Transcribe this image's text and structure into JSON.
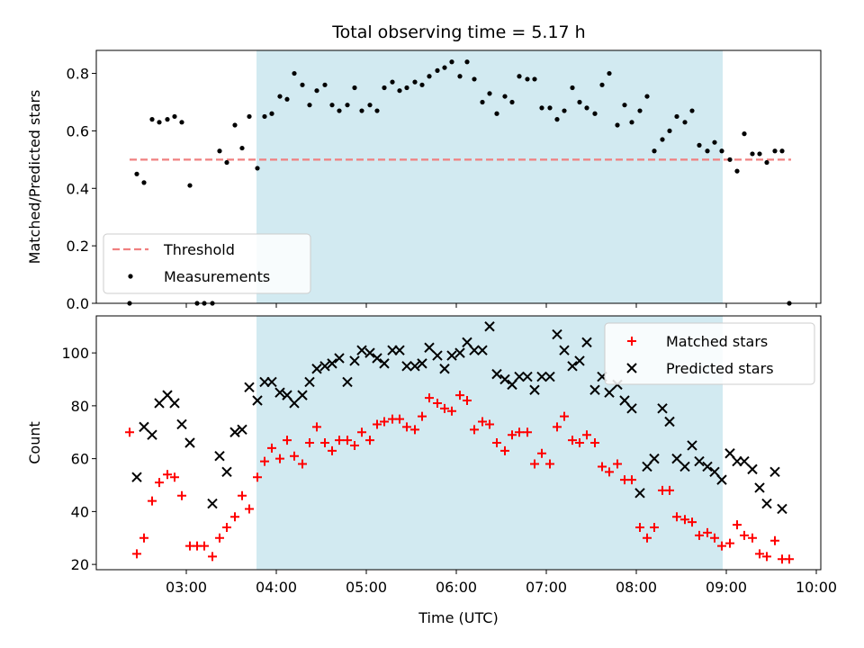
{
  "figure_title": "Total observing time = 5.17 h",
  "colors": {
    "band": "#add8e6",
    "threshold": "#f08080",
    "measurements": "#000000",
    "matched": "#ff0000",
    "predicted": "#000000"
  },
  "chart_data": [
    {
      "type": "scatter",
      "panel": "top",
      "ylabel": "Matched/Predicted stars",
      "xlim_hours": [
        2.0,
        10.05
      ],
      "ylim": [
        0,
        0.88
      ],
      "yticks": [
        0.0,
        0.2,
        0.4,
        0.6,
        0.8
      ],
      "ytick_labels": [
        "0.0",
        "0.2",
        "0.4",
        "0.6",
        "0.8"
      ],
      "xtick_hours": [
        3,
        4,
        5,
        6,
        7,
        8,
        9,
        10
      ],
      "shaded_interval_hours": [
        3.78,
        8.96
      ],
      "legend_position": "lower-left",
      "legend": [
        "Threshold",
        "Measurements"
      ],
      "threshold": {
        "name": "Threshold",
        "value": 0.5,
        "x_range_hours": [
          2.37,
          9.72
        ]
      },
      "series": [
        {
          "name": "Measurements",
          "x_hours": [
            2.37,
            2.45,
            2.53,
            2.62,
            2.7,
            2.79,
            2.87,
            2.95,
            3.04,
            3.12,
            3.2,
            3.29,
            3.37,
            3.45,
            3.54,
            3.62,
            3.7,
            3.79,
            3.87,
            3.95,
            4.04,
            4.12,
            4.2,
            4.29,
            4.37,
            4.45,
            4.54,
            4.62,
            4.7,
            4.79,
            4.87,
            4.95,
            5.04,
            5.12,
            5.2,
            5.29,
            5.37,
            5.45,
            5.54,
            5.62,
            5.7,
            5.79,
            5.87,
            5.95,
            6.04,
            6.12,
            6.2,
            6.29,
            6.37,
            6.45,
            6.54,
            6.62,
            6.7,
            6.79,
            6.87,
            6.95,
            7.04,
            7.12,
            7.2,
            7.29,
            7.37,
            7.45,
            7.54,
            7.62,
            7.7,
            7.79,
            7.87,
            7.95,
            8.04,
            8.12,
            8.2,
            8.29,
            8.37,
            8.45,
            8.54,
            8.62,
            8.7,
            8.79,
            8.87,
            8.95,
            9.04,
            9.12,
            9.2,
            9.29,
            9.37,
            9.45,
            9.54,
            9.62,
            9.7
          ],
          "y": [
            0.0,
            0.45,
            0.42,
            0.64,
            0.63,
            0.64,
            0.65,
            0.63,
            0.41,
            0.0,
            0.0,
            0.0,
            0.53,
            0.49,
            0.62,
            0.54,
            0.65,
            0.47,
            0.65,
            0.66,
            0.72,
            0.71,
            0.8,
            0.76,
            0.69,
            0.74,
            0.76,
            0.69,
            0.67,
            0.69,
            0.75,
            0.67,
            0.69,
            0.67,
            0.75,
            0.77,
            0.74,
            0.75,
            0.77,
            0.76,
            0.79,
            0.81,
            0.82,
            0.84,
            0.79,
            0.84,
            0.78,
            0.7,
            0.73,
            0.66,
            0.72,
            0.7,
            0.79,
            0.78,
            0.78,
            0.68,
            0.68,
            0.64,
            0.67,
            0.75,
            0.7,
            0.68,
            0.66,
            0.76,
            0.8,
            0.62,
            0.69,
            0.63,
            0.67,
            0.72,
            0.53,
            0.57,
            0.6,
            0.65,
            0.63,
            0.67,
            0.55,
            0.53,
            0.56,
            0.53,
            0.5,
            0.46,
            0.59,
            0.52,
            0.52,
            0.49,
            0.53,
            0.53,
            0.0
          ]
        }
      ]
    },
    {
      "type": "scatter",
      "panel": "bottom",
      "ylabel": "Count",
      "xlabel": "Time (UTC)",
      "xlim_hours": [
        2.0,
        10.05
      ],
      "ylim": [
        18,
        114
      ],
      "yticks": [
        20,
        40,
        60,
        80,
        100
      ],
      "ytick_labels": [
        "20",
        "40",
        "60",
        "80",
        "100"
      ],
      "xtick_hours": [
        3,
        4,
        5,
        6,
        7,
        8,
        9,
        10
      ],
      "xtick_labels": [
        "03:00",
        "04:00",
        "05:00",
        "06:00",
        "07:00",
        "08:00",
        "09:00",
        "10:00"
      ],
      "shaded_interval_hours": [
        3.78,
        8.96
      ],
      "legend_position": "upper-right",
      "legend": [
        "Matched stars",
        "Predicted stars"
      ],
      "series": [
        {
          "name": "Matched stars",
          "marker": "plus",
          "x_hours": [
            2.37,
            2.45,
            2.53,
            2.62,
            2.7,
            2.79,
            2.87,
            2.95,
            3.04,
            3.12,
            3.2,
            3.29,
            3.37,
            3.45,
            3.54,
            3.62,
            3.7,
            3.79,
            3.87,
            3.95,
            4.04,
            4.12,
            4.2,
            4.29,
            4.37,
            4.45,
            4.54,
            4.62,
            4.7,
            4.79,
            4.87,
            4.95,
            5.04,
            5.12,
            5.2,
            5.29,
            5.37,
            5.45,
            5.54,
            5.62,
            5.7,
            5.79,
            5.87,
            5.95,
            6.04,
            6.12,
            6.2,
            6.29,
            6.37,
            6.45,
            6.54,
            6.62,
            6.7,
            6.79,
            6.87,
            6.95,
            7.04,
            7.12,
            7.2,
            7.29,
            7.37,
            7.45,
            7.54,
            7.62,
            7.7,
            7.79,
            7.87,
            7.95,
            8.04,
            8.12,
            8.2,
            8.29,
            8.37,
            8.45,
            8.54,
            8.62,
            8.7,
            8.79,
            8.87,
            8.95,
            9.04,
            9.12,
            9.2,
            9.29,
            9.37,
            9.45,
            9.54,
            9.62,
            9.7
          ],
          "y": [
            70,
            24,
            30,
            44,
            51,
            54,
            53,
            46,
            27,
            27,
            27,
            23,
            30,
            34,
            38,
            46,
            41,
            53,
            59,
            64,
            60,
            67,
            61,
            58,
            66,
            72,
            66,
            63,
            67,
            67,
            65,
            70,
            67,
            73,
            74,
            75,
            75,
            72,
            71,
            76,
            83,
            81,
            79,
            78,
            84,
            82,
            71,
            74,
            73,
            66,
            63,
            69,
            70,
            70,
            58,
            62,
            58,
            72,
            76,
            67,
            66,
            69,
            66,
            57,
            55,
            58,
            52,
            52,
            34,
            30,
            34,
            48,
            48,
            38,
            37,
            36,
            31,
            32,
            30,
            27,
            28,
            35,
            31,
            30,
            24,
            23,
            29,
            22,
            22
          ]
        },
        {
          "name": "Predicted stars",
          "marker": "x",
          "x_hours": [
            2.45,
            2.53,
            2.62,
            2.7,
            2.79,
            2.87,
            2.95,
            3.04,
            3.29,
            3.37,
            3.45,
            3.54,
            3.62,
            3.7,
            3.79,
            3.87,
            3.95,
            4.04,
            4.12,
            4.2,
            4.29,
            4.37,
            4.45,
            4.54,
            4.62,
            4.7,
            4.79,
            4.87,
            4.95,
            5.04,
            5.12,
            5.2,
            5.29,
            5.37,
            5.45,
            5.54,
            5.62,
            5.7,
            5.79,
            5.87,
            5.95,
            6.04,
            6.12,
            6.2,
            6.29,
            6.37,
            6.45,
            6.54,
            6.62,
            6.7,
            6.79,
            6.87,
            6.95,
            7.04,
            7.12,
            7.2,
            7.29,
            7.37,
            7.45,
            7.54,
            7.62,
            7.7,
            7.79,
            7.87,
            7.95,
            8.04,
            8.12,
            8.2,
            8.29,
            8.37,
            8.45,
            8.54,
            8.62,
            8.7,
            8.79,
            8.87,
            8.95,
            9.04,
            9.12,
            9.2,
            9.29,
            9.37,
            9.45,
            9.54,
            9.62
          ],
          "y": [
            53,
            72,
            69,
            81,
            84,
            81,
            73,
            66,
            43,
            61,
            55,
            70,
            71,
            87,
            82,
            89,
            89,
            85,
            84,
            81,
            84,
            89,
            94,
            95,
            96,
            98,
            89,
            97,
            101,
            100,
            98,
            96,
            101,
            101,
            95,
            95,
            96,
            102,
            99,
            94,
            99,
            100,
            104,
            101,
            101,
            110,
            92,
            90,
            88,
            91,
            91,
            86,
            91,
            91,
            107,
            101,
            95,
            97,
            104,
            86,
            91,
            85,
            88,
            82,
            79,
            47,
            57,
            60,
            79,
            74,
            60,
            57,
            65,
            59,
            57,
            55,
            52,
            62,
            59,
            59,
            56,
            49,
            43,
            55,
            41
          ]
        }
      ]
    }
  ]
}
